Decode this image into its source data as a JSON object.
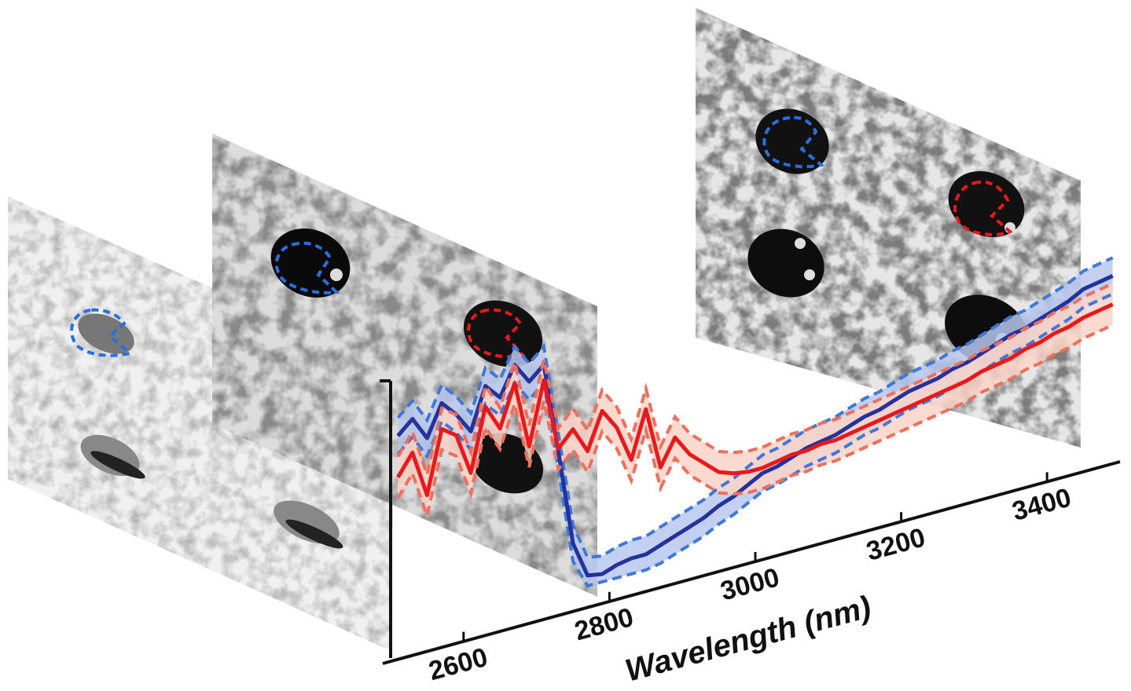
{
  "panels": [
    {
      "id": "left",
      "tone": "light-gray"
    },
    {
      "id": "middle",
      "tone": "mid-gray"
    },
    {
      "id": "right",
      "tone": "dark-gray"
    }
  ],
  "colors": {
    "blue_line": "#24339a",
    "blue_band": "#b8c8ee",
    "blue_dash": "#3f78d8",
    "red_line": "#e8191b",
    "red_band": "#fcd3c8",
    "red_dash": "#ee6f5c"
  },
  "chart_data": {
    "type": "line",
    "xlabel": "Wavelength (nm)",
    "ylabel": "",
    "xlim": [
      2500,
      3500
    ],
    "x_ticks": [
      "2600",
      "2800",
      "3000",
      "3200",
      "3400"
    ],
    "x": [
      2510,
      2530,
      2550,
      2570,
      2590,
      2610,
      2630,
      2650,
      2670,
      2690,
      2710,
      2730,
      2750,
      2770,
      2790,
      2810,
      2830,
      2850,
      2870,
      2890,
      2910,
      2930,
      2950,
      2970,
      2990,
      3010,
      3030,
      3050,
      3070,
      3090,
      3110,
      3130,
      3150,
      3170,
      3190,
      3210,
      3230,
      3250,
      3270,
      3290,
      3310,
      3330,
      3350,
      3370,
      3390,
      3410,
      3430,
      3450,
      3470,
      3490
    ],
    "series": [
      {
        "color_key": "blue",
        "values": [
          0.78,
          0.83,
          0.74,
          0.86,
          0.8,
          0.72,
          0.88,
          0.82,
          0.93,
          0.85,
          0.9,
          0.55,
          0.18,
          0.04,
          0.03,
          0.05,
          0.06,
          0.06,
          0.08,
          0.1,
          0.12,
          0.14,
          0.17,
          0.19,
          0.22,
          0.25,
          0.26,
          0.28,
          0.3,
          0.31,
          0.32,
          0.34,
          0.36,
          0.37,
          0.39,
          0.41,
          0.42,
          0.43,
          0.45,
          0.46,
          0.48,
          0.5,
          0.52,
          0.53,
          0.55,
          0.57,
          0.59,
          0.62,
          0.63,
          0.64
        ],
        "band": 0.07
      },
      {
        "color_key": "red",
        "values": [
          0.62,
          0.7,
          0.52,
          0.76,
          0.72,
          0.56,
          0.8,
          0.7,
          0.86,
          0.6,
          0.84,
          0.56,
          0.62,
          0.52,
          0.66,
          0.58,
          0.44,
          0.62,
          0.38,
          0.48,
          0.4,
          0.35,
          0.3,
          0.28,
          0.27,
          0.27,
          0.28,
          0.29,
          0.29,
          0.3,
          0.3,
          0.31,
          0.32,
          0.33,
          0.34,
          0.35,
          0.36,
          0.37,
          0.38,
          0.39,
          0.41,
          0.42,
          0.43,
          0.45,
          0.46,
          0.48,
          0.49,
          0.51,
          0.52,
          0.53
        ],
        "band": 0.08
      }
    ]
  }
}
